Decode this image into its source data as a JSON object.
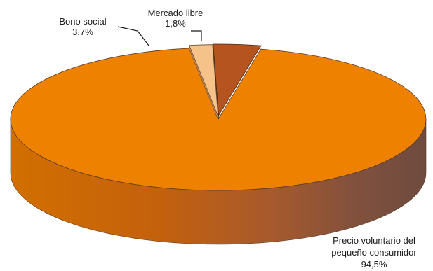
{
  "chart_data": {
    "type": "pie",
    "style": "3d-exploded",
    "title": "",
    "slices": [
      {
        "label": "Precio voluntario del pequeño consumidor",
        "label_lines": [
          "Precio voluntario del",
          "pequeño consumidor"
        ],
        "value_label": "94,5%",
        "value": 94.5,
        "color": "#ee8200"
      },
      {
        "label": "Bono social",
        "label_lines": [
          "Bono social"
        ],
        "value_label": "3,7%",
        "value": 3.7,
        "color": "#b5541e"
      },
      {
        "label": "Mercado libre",
        "label_lines": [
          "Mercado libre"
        ],
        "value_label": "1,8%",
        "value": 1.8,
        "color": "#f5c38a"
      }
    ],
    "legend": "none"
  }
}
